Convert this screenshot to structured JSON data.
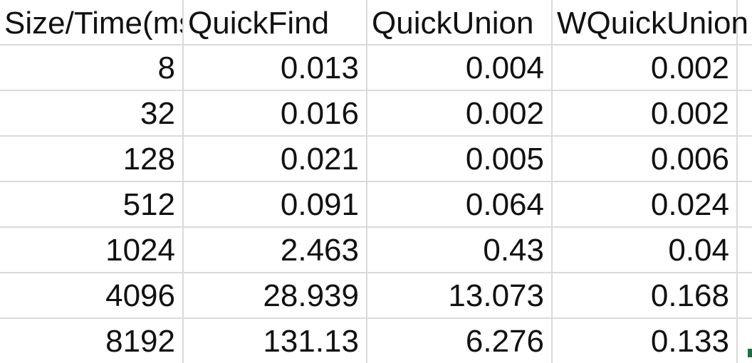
{
  "table": {
    "headers": [
      "Size/Time(ms",
      "QuickFind",
      "QuickUnion",
      "WQuickUnion"
    ],
    "rows": [
      [
        "8",
        "0.013",
        "0.004",
        "0.002"
      ],
      [
        "32",
        "0.016",
        "0.002",
        "0.002"
      ],
      [
        "128",
        "0.021",
        "0.005",
        "0.006"
      ],
      [
        "512",
        "0.091",
        "0.064",
        "0.024"
      ],
      [
        "1024",
        "2.463",
        "0.43",
        "0.04"
      ],
      [
        "4096",
        "28.939",
        "13.073",
        "0.168"
      ],
      [
        "8192",
        "131.13",
        "6.276",
        "0.133"
      ]
    ]
  },
  "colors": {
    "gridline": "#dadada",
    "text": "#111111",
    "fill_handle": "#1d6f42"
  }
}
